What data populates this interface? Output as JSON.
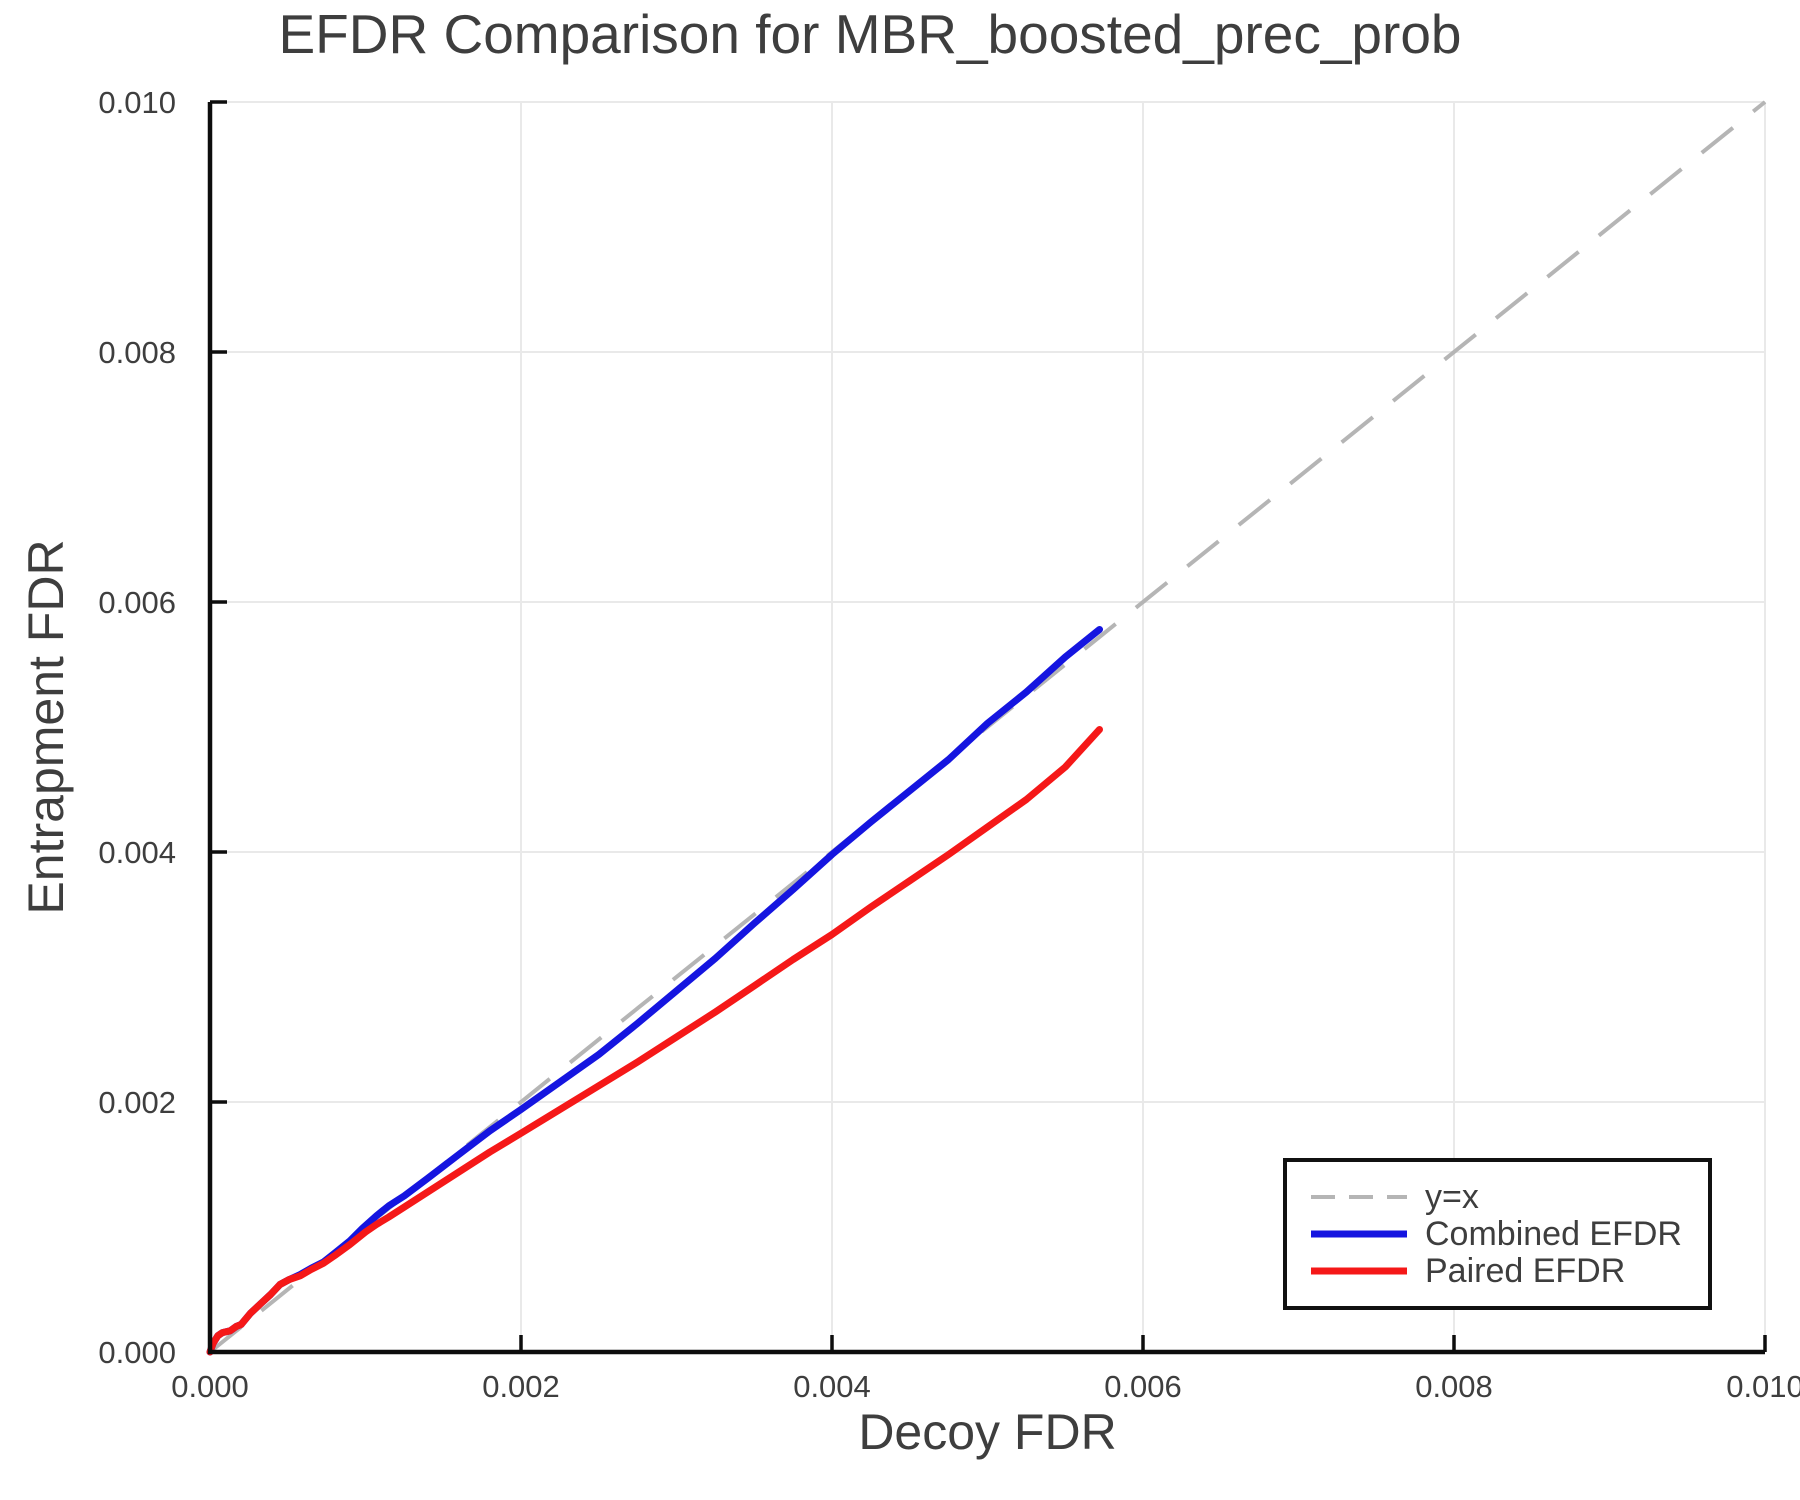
{
  "figure": {
    "background": "#ffffff",
    "text_color": "#3e3e3e",
    "spine_color": "#0d0d0d",
    "grid_color": "#e9e9e9"
  },
  "chart_data": {
    "type": "line",
    "title": "EFDR Comparison for MBR_boosted_prec_prob",
    "xlabel": "Decoy FDR",
    "ylabel": "Entrapment FDR",
    "xlim": [
      0.0,
      0.01
    ],
    "ylim": [
      0.0,
      0.01
    ],
    "xticks": [
      0.0,
      0.002,
      0.004,
      0.006,
      0.008,
      0.01
    ],
    "xtick_labels": [
      "0.000",
      "0.002",
      "0.004",
      "0.006",
      "0.008",
      "0.010"
    ],
    "yticks": [
      0.0,
      0.002,
      0.004,
      0.006,
      0.008,
      0.01
    ],
    "ytick_labels": [
      "0.000",
      "0.002",
      "0.004",
      "0.006",
      "0.008",
      "0.010"
    ],
    "grid": true,
    "legend_position": "lower right",
    "series": [
      {
        "name": "y=x",
        "style": "dashed",
        "color": "#b5b5b5",
        "width": 4,
        "x": [
          0.0,
          0.01
        ],
        "y": [
          0.0,
          0.01
        ]
      },
      {
        "name": "Combined EFDR",
        "style": "solid",
        "color": "#1515e0",
        "width": 7,
        "x": [
          0,
          2e-05,
          5e-05,
          8e-05,
          0.00013,
          0.00017,
          0.0002,
          0.00026,
          0.00032,
          0.00039,
          0.00045,
          0.00051,
          0.00058,
          0.00065,
          0.00073,
          0.0008,
          0.0009,
          0.00098,
          0.00107,
          0.00115,
          0.00125,
          0.0014,
          0.0016,
          0.0018,
          0.002,
          0.00225,
          0.0025,
          0.00275,
          0.003,
          0.00325,
          0.0035,
          0.00375,
          0.004,
          0.00425,
          0.0045,
          0.00475,
          0.005,
          0.00525,
          0.0055,
          0.00572
        ],
        "y": [
          0,
          7e-05,
          0.00013,
          0.000155,
          0.00017,
          0.000205,
          0.00022,
          0.00031,
          0.00038,
          0.00046,
          0.00054,
          0.00058,
          0.00062,
          0.00067,
          0.00072,
          0.00079,
          0.00089,
          0.00099,
          0.00109,
          0.00117,
          0.00125,
          0.00139,
          0.00158,
          0.00177,
          0.00194,
          0.00216,
          0.00238,
          0.00263,
          0.00289,
          0.00315,
          0.00343,
          0.0037,
          0.00398,
          0.00424,
          0.00449,
          0.00474,
          0.00503,
          0.00528,
          0.00556,
          0.00578
        ]
      },
      {
        "name": "Paired EFDR",
        "style": "solid",
        "color": "#f51818",
        "width": 7,
        "x": [
          0,
          2e-05,
          5e-05,
          8e-05,
          0.00013,
          0.00017,
          0.0002,
          0.00026,
          0.00032,
          0.00039,
          0.00045,
          0.00051,
          0.00058,
          0.00065,
          0.00073,
          0.0008,
          0.0009,
          0.001,
          0.00107,
          0.00115,
          0.00125,
          0.0014,
          0.0016,
          0.0018,
          0.002,
          0.00225,
          0.0025,
          0.00275,
          0.003,
          0.00325,
          0.0035,
          0.00375,
          0.004,
          0.00425,
          0.0045,
          0.00475,
          0.005,
          0.00525,
          0.0055,
          0.00572
        ],
        "y": [
          0,
          7e-05,
          0.00013,
          0.000155,
          0.00017,
          0.000205,
          0.00022,
          0.00031,
          0.00038,
          0.00046,
          0.00054,
          0.00058,
          0.00061,
          0.00066,
          0.00071,
          0.00077,
          0.00086,
          0.00096,
          0.00102,
          0.00108,
          0.00116,
          0.00128,
          0.00144,
          0.0016,
          0.00175,
          0.00194,
          0.00213,
          0.00232,
          0.00252,
          0.00272,
          0.00293,
          0.00314,
          0.00334,
          0.00356,
          0.00377,
          0.00398,
          0.0042,
          0.00442,
          0.00468,
          0.00498
        ]
      }
    ]
  }
}
